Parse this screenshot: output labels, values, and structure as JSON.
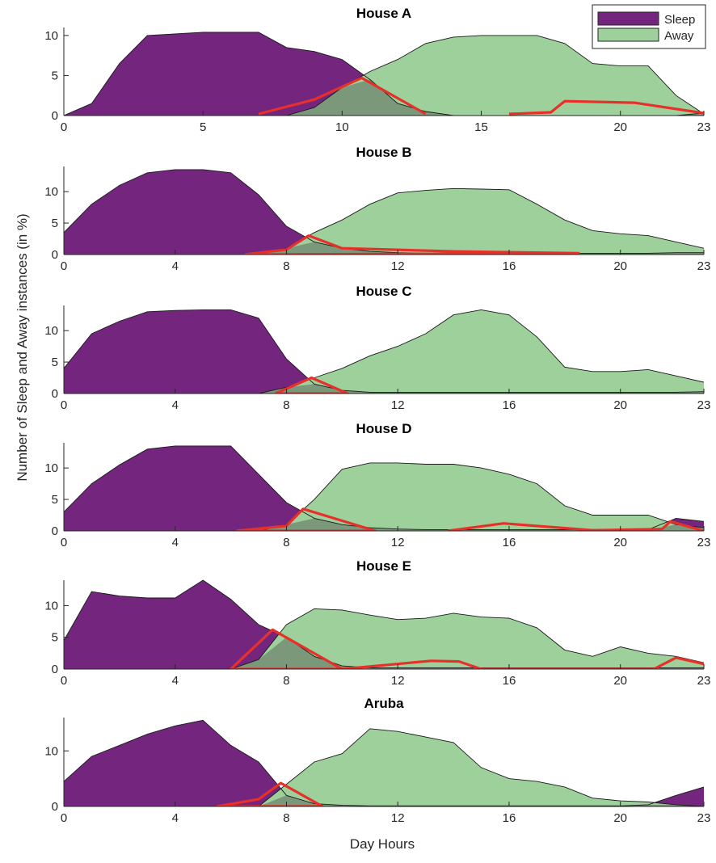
{
  "figure": {
    "ylabel": "Number of Sleep and Away instances (in %)",
    "xlabel": "Day Hours"
  },
  "legend": {
    "placement": "top-right",
    "items": [
      {
        "label": "Sleep",
        "color": "#74267f"
      },
      {
        "label": "Away",
        "color": "#9dd09b"
      }
    ]
  },
  "colors": {
    "sleep": "#74267f",
    "away": "#9dd09b",
    "overlap": "#7b987a",
    "highlight": "#e8302b"
  },
  "chart_data": [
    {
      "type": "area",
      "title": "House A",
      "xlim": [
        0,
        23
      ],
      "ylim": [
        0,
        11
      ],
      "xticks": [
        0,
        5,
        10,
        15,
        20,
        23
      ],
      "yticks": [
        0,
        5,
        10
      ],
      "series": [
        {
          "name": "Sleep",
          "x": [
            0,
            1,
            2,
            3,
            4,
            5,
            6,
            7,
            8,
            9,
            10,
            11,
            12,
            13,
            14,
            15,
            16,
            17,
            18,
            19,
            20,
            21,
            22,
            23
          ],
          "values": [
            0,
            1.5,
            6.5,
            10,
            10.2,
            10.4,
            10.4,
            10.4,
            8.5,
            8,
            7,
            4.5,
            1.5,
            0.5,
            0,
            0,
            0,
            0,
            0,
            0,
            0,
            0,
            0,
            0.3
          ]
        },
        {
          "name": "Away",
          "x": [
            0,
            1,
            2,
            3,
            4,
            5,
            6,
            7,
            8,
            9,
            10,
            11,
            12,
            13,
            14,
            15,
            16,
            17,
            18,
            19,
            20,
            21,
            22,
            23
          ],
          "values": [
            0,
            0,
            0,
            0,
            0,
            0,
            0,
            0,
            0,
            1,
            3.5,
            5.5,
            7,
            9,
            9.8,
            10,
            10,
            10,
            9,
            6.5,
            6.2,
            6.2,
            2.5,
            0.2
          ]
        }
      ],
      "highlights": [
        [
          [
            7,
            0.2
          ],
          [
            9,
            2
          ],
          [
            10.7,
            4.7
          ],
          [
            13,
            0.2
          ]
        ],
        [
          [
            16,
            0.2
          ],
          [
            17.5,
            0.4
          ],
          [
            18,
            1.8
          ],
          [
            20.5,
            1.6
          ],
          [
            23,
            0.3
          ]
        ]
      ]
    },
    {
      "type": "area",
      "title": "House B",
      "xlim": [
        0,
        23
      ],
      "ylim": [
        0,
        14
      ],
      "xticks": [
        0,
        4,
        8,
        12,
        16,
        20,
        23
      ],
      "yticks": [
        0,
        5,
        10
      ],
      "series": [
        {
          "name": "Sleep",
          "x": [
            0,
            1,
            2,
            3,
            4,
            5,
            6,
            7,
            8,
            9,
            10,
            11,
            12,
            13,
            14,
            15,
            16,
            17,
            18,
            19,
            20,
            21,
            22,
            23
          ],
          "values": [
            3.5,
            8,
            11,
            13,
            13.5,
            13.5,
            13,
            9.5,
            4.5,
            2,
            1,
            0.5,
            0.3,
            0.2,
            0.2,
            0.2,
            0.2,
            0.2,
            0.2,
            0.2,
            0.2,
            0.2,
            0.3,
            0.3
          ]
        },
        {
          "name": "Away",
          "x": [
            0,
            1,
            2,
            3,
            4,
            5,
            6,
            7,
            8,
            9,
            10,
            11,
            12,
            13,
            14,
            15,
            16,
            17,
            18,
            19,
            20,
            21,
            22,
            23
          ],
          "values": [
            0,
            0,
            0,
            0,
            0,
            0,
            0,
            0,
            1,
            3.5,
            5.5,
            8,
            9.8,
            10.2,
            10.5,
            10.4,
            10.3,
            8,
            5.5,
            3.8,
            3.3,
            3,
            2,
            1
          ]
        }
      ],
      "highlights": [
        [
          [
            6.5,
            0
          ],
          [
            8,
            0.8
          ],
          [
            8.8,
            3
          ],
          [
            10,
            1
          ],
          [
            14,
            0.5
          ],
          [
            18.5,
            0.2
          ],
          [
            6.5,
            0
          ]
        ]
      ]
    },
    {
      "type": "area",
      "title": "House C",
      "xlim": [
        0,
        23
      ],
      "ylim": [
        0,
        14
      ],
      "xticks": [
        0,
        4,
        8,
        12,
        16,
        20,
        23
      ],
      "yticks": [
        0,
        5,
        10
      ],
      "series": [
        {
          "name": "Sleep",
          "x": [
            0,
            1,
            2,
            3,
            4,
            5,
            6,
            7,
            8,
            9,
            10,
            11,
            12,
            13,
            14,
            15,
            16,
            17,
            18,
            19,
            20,
            21,
            22,
            23
          ],
          "values": [
            4,
            9.5,
            11.5,
            13,
            13.2,
            13.3,
            13.3,
            12,
            5.5,
            1.5,
            0.5,
            0.2,
            0.2,
            0.2,
            0.2,
            0.2,
            0.2,
            0.2,
            0.2,
            0.2,
            0.2,
            0.2,
            0.2,
            0.3
          ]
        },
        {
          "name": "Away",
          "x": [
            0,
            1,
            2,
            3,
            4,
            5,
            6,
            7,
            8,
            9,
            10,
            11,
            12,
            13,
            14,
            15,
            16,
            17,
            18,
            19,
            20,
            21,
            22,
            23
          ],
          "values": [
            0,
            0,
            0,
            0,
            0,
            0,
            0,
            0,
            1,
            2.5,
            4,
            6,
            7.5,
            9.5,
            12.5,
            13.3,
            12.5,
            9,
            4.2,
            3.5,
            3.5,
            3.8,
            2.8,
            1.8
          ]
        }
      ],
      "highlights": [
        [
          [
            7.6,
            0
          ],
          [
            8.9,
            2.5
          ],
          [
            10.2,
            0
          ],
          [
            7.6,
            0
          ]
        ]
      ]
    },
    {
      "type": "area",
      "title": "House D",
      "xlim": [
        0,
        23
      ],
      "ylim": [
        0,
        14
      ],
      "xticks": [
        0,
        4,
        8,
        12,
        16,
        20,
        23
      ],
      "yticks": [
        0,
        5,
        10
      ],
      "series": [
        {
          "name": "Sleep",
          "x": [
            0,
            1,
            2,
            3,
            4,
            5,
            6,
            7,
            8,
            9,
            10,
            11,
            12,
            13,
            14,
            15,
            16,
            17,
            18,
            19,
            20,
            21,
            22,
            23
          ],
          "values": [
            3,
            7.5,
            10.5,
            13,
            13.5,
            13.5,
            13.5,
            9,
            4.5,
            2,
            1,
            0.5,
            0.3,
            0.2,
            0.2,
            0.2,
            0.2,
            0.2,
            0.2,
            0.2,
            0.2,
            0.2,
            2,
            1.5
          ]
        },
        {
          "name": "Away",
          "x": [
            0,
            1,
            2,
            3,
            4,
            5,
            6,
            7,
            8,
            9,
            10,
            11,
            12,
            13,
            14,
            15,
            16,
            17,
            18,
            19,
            20,
            21,
            22,
            23
          ],
          "values": [
            0,
            0,
            0,
            0,
            0,
            0,
            0,
            0,
            1,
            5,
            9.8,
            10.8,
            10.8,
            10.6,
            10.6,
            10,
            9,
            7.5,
            4,
            2.5,
            2.5,
            2.5,
            1,
            0.5
          ]
        }
      ],
      "highlights": [
        [
          [
            6.2,
            0
          ],
          [
            8,
            0.8
          ],
          [
            8.6,
            3.5
          ],
          [
            11.2,
            0
          ],
          [
            6.2,
            0
          ]
        ],
        [
          [
            13.8,
            0
          ],
          [
            15.8,
            1.2
          ],
          [
            19,
            0.1
          ],
          [
            21.5,
            0.3
          ],
          [
            21.8,
            1.5
          ],
          [
            23,
            0
          ]
        ]
      ]
    },
    {
      "type": "area",
      "title": "House E",
      "xlim": [
        0,
        23
      ],
      "ylim": [
        0,
        14
      ],
      "xticks": [
        0,
        4,
        8,
        12,
        16,
        20,
        23
      ],
      "yticks": [
        0,
        5,
        10
      ],
      "series": [
        {
          "name": "Sleep",
          "x": [
            0,
            1,
            2,
            3,
            4,
            5,
            6,
            7,
            8,
            9,
            10,
            11,
            12,
            13,
            14,
            15,
            16,
            17,
            18,
            19,
            20,
            21,
            22,
            23
          ],
          "values": [
            4.5,
            12.2,
            11.5,
            11.2,
            11.2,
            14,
            11,
            7,
            5,
            2,
            0.5,
            0.2,
            0.2,
            0.2,
            0.2,
            0.2,
            0.2,
            0.2,
            0.2,
            0.2,
            0.2,
            0.2,
            0.2,
            0.2
          ]
        },
        {
          "name": "Away",
          "x": [
            0,
            1,
            2,
            3,
            4,
            5,
            6,
            7,
            8,
            9,
            10,
            11,
            12,
            13,
            14,
            15,
            16,
            17,
            18,
            19,
            20,
            21,
            22,
            23
          ],
          "values": [
            0,
            0,
            0,
            0,
            0,
            0,
            0,
            1.5,
            7,
            9.5,
            9.3,
            8.5,
            7.8,
            8,
            8.8,
            8.2,
            8,
            6.5,
            3,
            2,
            3.5,
            2.5,
            2,
            1
          ]
        }
      ],
      "highlights": [
        [
          [
            6,
            0
          ],
          [
            7.5,
            6.2
          ],
          [
            10,
            0
          ],
          [
            6,
            0
          ]
        ],
        [
          [
            10,
            0
          ],
          [
            13.2,
            1.3
          ],
          [
            14.2,
            1.2
          ],
          [
            15,
            0
          ],
          [
            21.2,
            0
          ],
          [
            22,
            1.8
          ],
          [
            23,
            0.8
          ]
        ]
      ]
    },
    {
      "type": "area",
      "title": "Aruba",
      "xlim": [
        0,
        23
      ],
      "ylim": [
        0,
        16
      ],
      "xticks": [
        0,
        4,
        8,
        12,
        16,
        20,
        23
      ],
      "yticks": [
        0,
        10
      ],
      "series": [
        {
          "name": "Sleep",
          "x": [
            0,
            1,
            2,
            3,
            4,
            5,
            6,
            7,
            8,
            9,
            10,
            11,
            12,
            13,
            14,
            15,
            16,
            17,
            18,
            19,
            20,
            21,
            22,
            23
          ],
          "values": [
            4.5,
            9,
            11,
            13,
            14.5,
            15.5,
            11,
            8,
            2,
            0.5,
            0.2,
            0.1,
            0.1,
            0.1,
            0.1,
            0.1,
            0.1,
            0.1,
            0.1,
            0.1,
            0.1,
            0.3,
            2,
            3.5
          ]
        },
        {
          "name": "Away",
          "x": [
            0,
            1,
            2,
            3,
            4,
            5,
            6,
            7,
            8,
            9,
            10,
            11,
            12,
            13,
            14,
            15,
            16,
            17,
            18,
            19,
            20,
            21,
            22,
            23
          ],
          "values": [
            0,
            0,
            0,
            0,
            0,
            0,
            0,
            0,
            4,
            8,
            9.5,
            14,
            13.5,
            12.5,
            11.5,
            7,
            5,
            4.5,
            3.5,
            1.5,
            1,
            0.8,
            0.3,
            0
          ]
        }
      ],
      "highlights": [
        [
          [
            5.5,
            0
          ],
          [
            7,
            1.3
          ],
          [
            7.8,
            4.2
          ],
          [
            9.3,
            0
          ],
          [
            5.5,
            0
          ]
        ]
      ]
    }
  ]
}
